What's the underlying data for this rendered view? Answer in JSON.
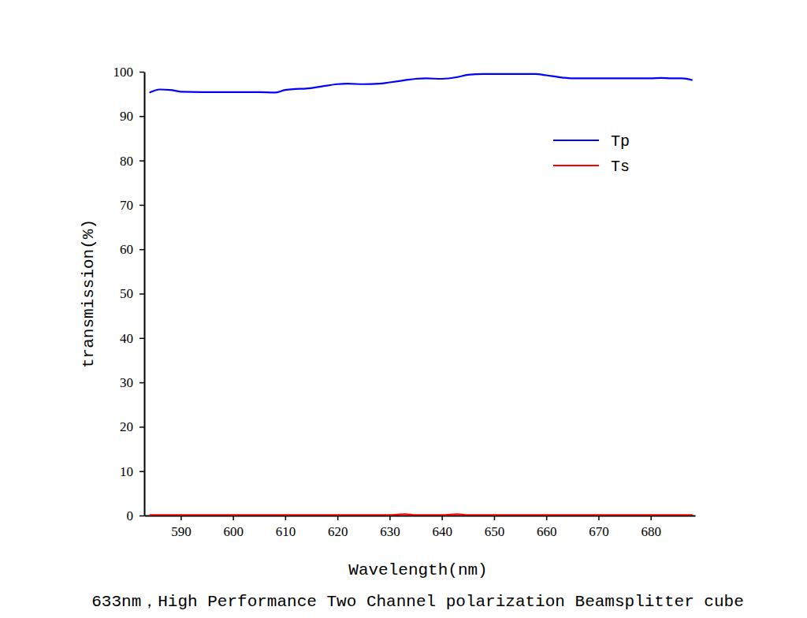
{
  "chart_data": {
    "type": "line",
    "title": "633nm，High Performance Two Channel polarization Beamsplitter cube",
    "x_label": "Wavelength(nm)",
    "y_label": "transmission(%)",
    "x": [
      584,
      586,
      588,
      590,
      595,
      600,
      605,
      608,
      610,
      612,
      614,
      617,
      620,
      622,
      625,
      628,
      630,
      633,
      635,
      637,
      640,
      643,
      645,
      648,
      652,
      655,
      658,
      660,
      663,
      665,
      670,
      675,
      680,
      682,
      684,
      686,
      688
    ],
    "series": [
      {
        "name": "Tp",
        "color": "#0000ff",
        "values": [
          95.3,
          96.0,
          95.9,
          95.5,
          95.4,
          95.4,
          95.4,
          95.3,
          95.9,
          96.1,
          96.2,
          96.7,
          97.2,
          97.3,
          97.2,
          97.3,
          97.6,
          98.1,
          98.4,
          98.5,
          98.4,
          98.8,
          99.3,
          99.5,
          99.5,
          99.5,
          99.5,
          99.2,
          98.7,
          98.5,
          98.5,
          98.5,
          98.5,
          98.6,
          98.5,
          98.5,
          98.1
        ]
      },
      {
        "name": "Ts",
        "color": "#ff0000",
        "values": [
          0.1,
          0.1,
          0.1,
          0.1,
          0.1,
          0.1,
          0.1,
          0.1,
          0.1,
          0.1,
          0.1,
          0.1,
          0.1,
          0.1,
          0.1,
          0.1,
          0.1,
          0.3,
          0.1,
          0.1,
          0.1,
          0.3,
          0.1,
          0.1,
          0.1,
          0.1,
          0.1,
          0.1,
          0.1,
          0.1,
          0.1,
          0.1,
          0.1,
          0.1,
          0.1,
          0.1,
          0.1
        ]
      }
    ],
    "xlim": [
      583,
      688.5
    ],
    "ylim": [
      0,
      100
    ],
    "xticks": [
      590,
      600,
      610,
      620,
      630,
      640,
      650,
      660,
      670,
      680
    ],
    "yticks": [
      0,
      10,
      20,
      30,
      40,
      50,
      60,
      70,
      80,
      90,
      100
    ],
    "grid": false,
    "legend": "upper right"
  }
}
